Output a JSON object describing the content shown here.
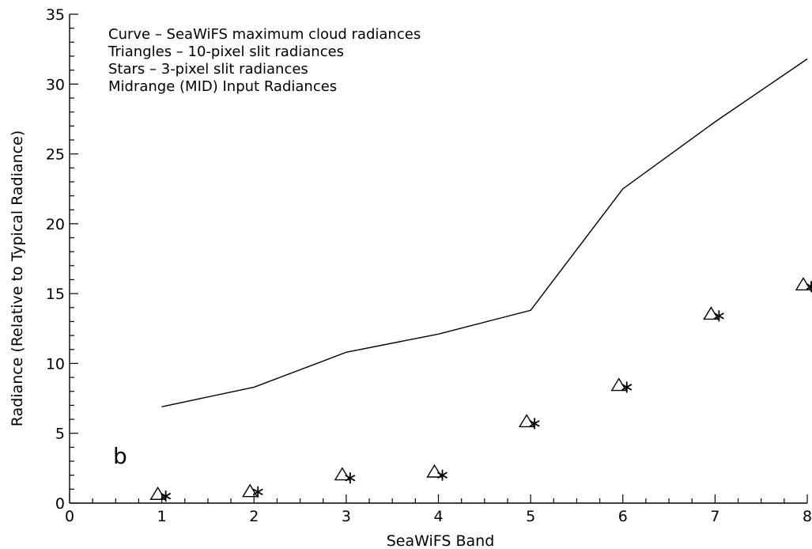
{
  "chart_data": {
    "type": "scatter",
    "title": "",
    "xlabel": "SeaWiFS Band",
    "ylabel": "Radiance (Relative to Typical Radiance)",
    "xlim": [
      0,
      8
    ],
    "ylim": [
      0,
      35
    ],
    "x_ticks": [
      0,
      1,
      2,
      3,
      4,
      5,
      6,
      7,
      8
    ],
    "y_ticks": [
      0,
      5,
      10,
      15,
      20,
      25,
      30,
      35
    ],
    "grid": false,
    "panel_label": "b",
    "legend_lines": [
      "Curve – SeaWiFS maximum cloud radiances",
      "Triangles – 10-pixel slit radiances",
      "Stars – 3-pixel slit radiances",
      "Midrange (MID) Input Radiances"
    ],
    "series": [
      {
        "marker": "line",
        "x": [
          1,
          2,
          3,
          4,
          5,
          6,
          7,
          8
        ],
        "y": [
          6.9,
          8.3,
          10.8,
          12.1,
          13.8,
          22.5,
          27.3,
          31.8
        ]
      },
      {
        "marker": "triangle",
        "x": [
          1,
          2,
          3,
          4,
          5,
          6,
          7,
          8
        ],
        "y": [
          0.6,
          0.8,
          2.0,
          2.2,
          5.8,
          8.4,
          13.5,
          15.6
        ]
      },
      {
        "marker": "star",
        "x": [
          1,
          2,
          3,
          4,
          5,
          6,
          7,
          8
        ],
        "y": [
          0.5,
          0.8,
          1.8,
          2.0,
          5.7,
          8.3,
          13.4,
          15.5
        ]
      }
    ],
    "colors": {
      "ink": "#000000",
      "background": "#ffffff"
    }
  }
}
